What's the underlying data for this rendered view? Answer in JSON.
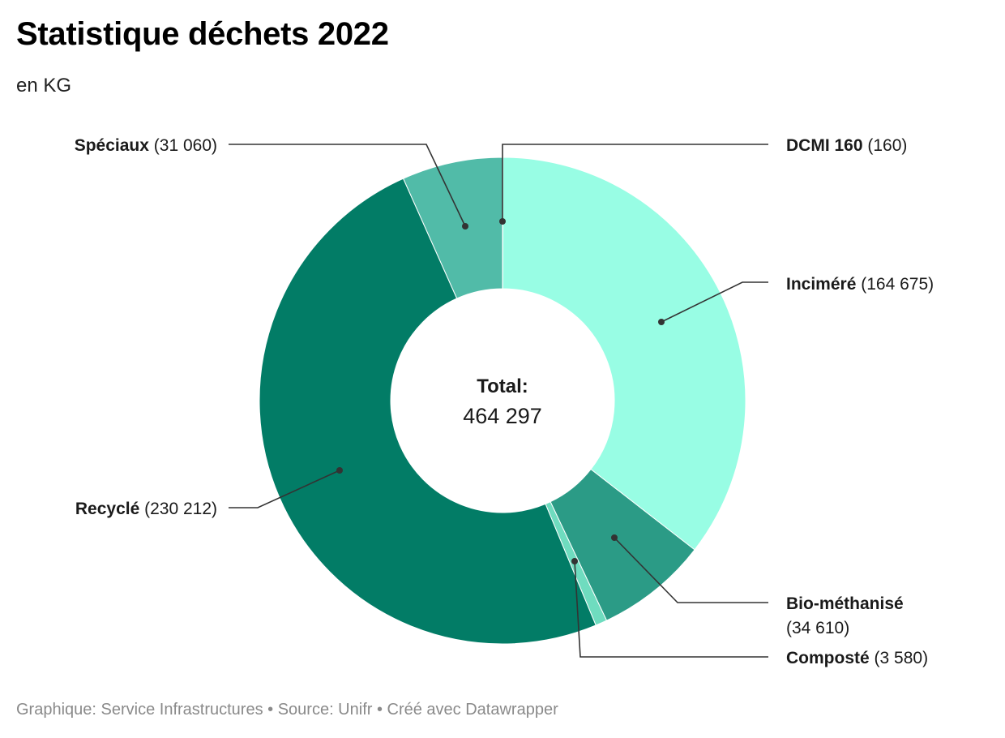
{
  "title": "Statistique déchets 2022",
  "subtitle": "en KG",
  "footer": "Graphique: Service Infrastructures • Source: Unifr • Créé avec Datawrapper",
  "center": {
    "label": "Total:",
    "value": "464 297"
  },
  "chart_data": {
    "type": "pie",
    "variant": "donut",
    "title": "Statistique déchets 2022",
    "subtitle": "en KG",
    "total": 464297,
    "slices": [
      {
        "name": "DCMI 160",
        "value": 160,
        "display": "(160)",
        "color": "#8fefe0"
      },
      {
        "name": "Inciméré",
        "value": 164675,
        "display": "(164 675)",
        "color": "#98fde4"
      },
      {
        "name": "Bio-méthanisé",
        "value": 34610,
        "display": "(34 610)",
        "color": "#2b9b86"
      },
      {
        "name": "Composté",
        "value": 3580,
        "display": "(3 580)",
        "color": "#6fdcbf"
      },
      {
        "name": "Recyclé",
        "value": 230212,
        "display": "(230 212)",
        "color": "#027c66"
      },
      {
        "name": "Spéciaux",
        "value": 31060,
        "display": "(31 060)",
        "color": "#51bba8"
      }
    ]
  }
}
